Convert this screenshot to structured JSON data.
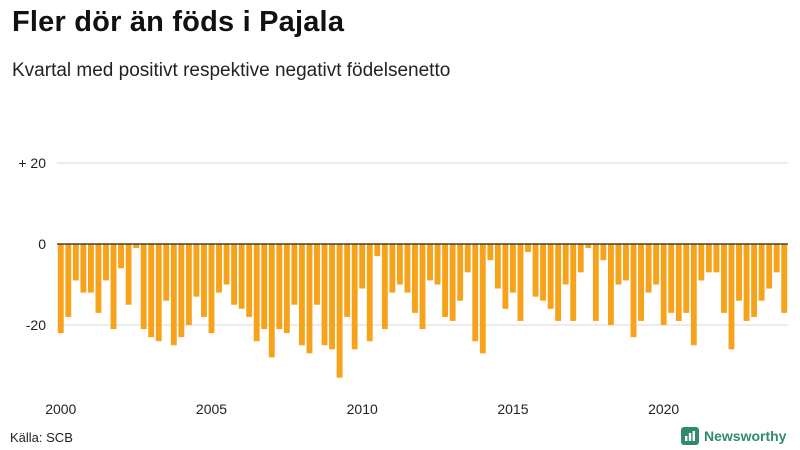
{
  "header": {
    "title": "Fler dör än föds i Pajala",
    "subtitle": "Kvartal med positivt respektive negativt födelsenetto"
  },
  "footer": {
    "source": "Källa: SCB",
    "brand": "Newsworthy",
    "brand_icon": "bar-chart-logo-icon"
  },
  "colors": {
    "bar": "#f7a21b",
    "grid": "#d9d9d9",
    "zero_line": "#222222",
    "brand": "#2f8a6e"
  },
  "chart_data": {
    "type": "bar",
    "title": "Fler dör än föds i Pajala",
    "subtitle": "Kvartal med positivt respektive negativt födelsenetto",
    "xlabel": "",
    "ylabel": "",
    "ylim": [
      -36,
      26
    ],
    "y_ticks": [
      20,
      0,
      -20
    ],
    "y_tick_labels": [
      "+ 20",
      "0",
      "-20"
    ],
    "x_ticks": [
      2000,
      2005,
      2010,
      2015,
      2020
    ],
    "x_tick_labels": [
      "2000",
      "2005",
      "2010",
      "2015",
      "2020"
    ],
    "start_year": 2000,
    "periods_per_year": 4,
    "values": [
      -22,
      -18,
      -9,
      -12,
      -12,
      -17,
      -9,
      -21,
      -6,
      -15,
      -1,
      -21,
      -23,
      -24,
      -14,
      -25,
      -23,
      -20,
      -13,
      -18,
      -22,
      -12,
      -10,
      -15,
      -16,
      -18,
      -24,
      -21,
      -28,
      -21,
      -22,
      -15,
      -25,
      -27,
      -15,
      -25,
      -26,
      -33,
      -18,
      -26,
      -11,
      -24,
      -3,
      -21,
      -12,
      -10,
      -12,
      -17,
      -21,
      -9,
      -10,
      -18,
      -19,
      -14,
      -7,
      -24,
      -27,
      -4,
      -11,
      -16,
      -12,
      -19,
      -2,
      -13,
      -14,
      -16,
      -19,
      -10,
      -19,
      -7,
      -1,
      -19,
      -4,
      -20,
      -10,
      -9,
      -23,
      -19,
      -12,
      -10,
      -20,
      -17,
      -19,
      -17,
      -25,
      -9,
      -7,
      -7,
      -17,
      -26,
      -14,
      -19,
      -18,
      -14,
      -11,
      -7,
      -17
    ]
  }
}
